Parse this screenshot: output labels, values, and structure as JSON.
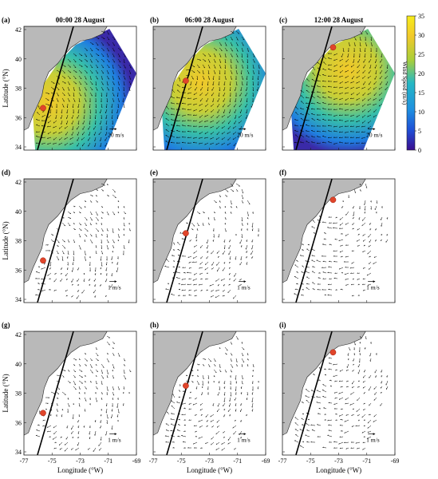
{
  "figure": {
    "colorbar": {
      "label": "Wind Speed (m/s)",
      "ticks": [
        "35",
        "30",
        "25",
        "20",
        "15",
        "10",
        "5",
        "0"
      ],
      "colors": [
        "#3a0d8f",
        "#1f4fd6",
        "#1f8fe0",
        "#25b8c4",
        "#4ac97a",
        "#a8cf3a",
        "#f2c92a",
        "#f7ec1a"
      ]
    },
    "axes": {
      "ylabel": "Latitude (°N)",
      "xlabel": "Longitude (°W)",
      "yticks": [
        "42",
        "40",
        "38",
        "36",
        "34"
      ],
      "xticks": [
        "-77",
        "-75",
        "-73",
        "-71",
        "-69"
      ]
    },
    "panels": [
      {
        "label": "(a)",
        "title": "00:00 28 August",
        "scale": "20 m/s",
        "kind": "wind"
      },
      {
        "label": "(b)",
        "title": "06:00 28 August",
        "scale": "20 m/s",
        "kind": "wind"
      },
      {
        "label": "(c)",
        "title": "12:00 28 August",
        "scale": "20 m/s",
        "kind": "wind"
      },
      {
        "label": "(d)",
        "title": "",
        "scale": "1 m/s",
        "kind": "current"
      },
      {
        "label": "(e)",
        "title": "",
        "scale": "1 m/s",
        "kind": "current"
      },
      {
        "label": "(f)",
        "title": "",
        "scale": "1 m/s",
        "kind": "current"
      },
      {
        "label": "(g)",
        "title": "",
        "scale": "1 m/s",
        "kind": "current"
      },
      {
        "label": "(h)",
        "title": "",
        "scale": "1 m/s",
        "kind": "current"
      },
      {
        "label": "(i)",
        "title": "",
        "scale": "1 m/s",
        "kind": "current"
      }
    ],
    "storm_marker_color": "#e0452a",
    "land_color": "#b9b9b9"
  }
}
